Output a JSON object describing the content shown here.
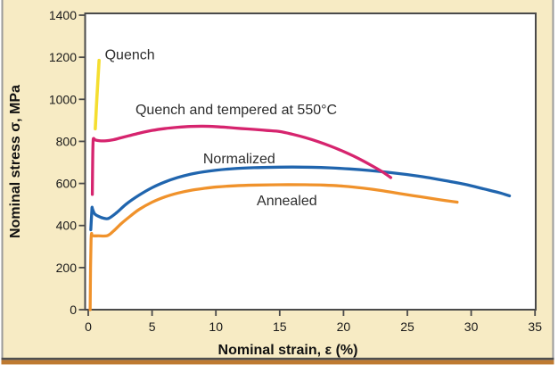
{
  "colors": {
    "panel_bg": "#F7EBC4",
    "plot_bg": "#FFFFFF",
    "plot_border": "#4A4A4A",
    "edge_line": "#9A9A9A",
    "edge_dark": "#4F4F4F",
    "edge_accent": "#BE7A31",
    "text": "#1A1A1A"
  },
  "chart_data": {
    "type": "line",
    "title": "",
    "xlabel": "Nominal strain, ε (%)",
    "ylabel": "Nominal stress σ, MPa",
    "xlim": [
      0,
      35
    ],
    "ylim": [
      0,
      1400
    ],
    "xticks": [
      0,
      5,
      10,
      15,
      20,
      25,
      30,
      35
    ],
    "yticks": [
      0,
      200,
      400,
      600,
      800,
      1000,
      1200,
      1400
    ],
    "grid": false,
    "legend": "inline-labels",
    "series": [
      {
        "name": "Quench",
        "color": "#F5DE30",
        "stroke_width": 3.6,
        "points": [
          [
            0.55,
            860
          ],
          [
            0.68,
            1010
          ],
          [
            0.85,
            1185
          ]
        ]
      },
      {
        "name": "Quench and tempered at 550°C",
        "color": "#D6246E",
        "stroke_width": 3.3,
        "points": [
          [
            0.32,
            548
          ],
          [
            0.35,
            720
          ],
          [
            0.38,
            800
          ],
          [
            0.42,
            814
          ],
          [
            0.55,
            807
          ],
          [
            0.9,
            803
          ],
          [
            1.4,
            803
          ],
          [
            1.9,
            807
          ],
          [
            2.5,
            816
          ],
          [
            3.2,
            827
          ],
          [
            4,
            839
          ],
          [
            5,
            852
          ],
          [
            6,
            861
          ],
          [
            7,
            867
          ],
          [
            8,
            871
          ],
          [
            9,
            872
          ],
          [
            10,
            870
          ],
          [
            11,
            866
          ],
          [
            12,
            861
          ],
          [
            13,
            857
          ],
          [
            14,
            852
          ],
          [
            15,
            847
          ],
          [
            16,
            834
          ],
          [
            17,
            818
          ],
          [
            18,
            799
          ],
          [
            19,
            777
          ],
          [
            20,
            752
          ],
          [
            21,
            724
          ],
          [
            22,
            692
          ],
          [
            23,
            657
          ],
          [
            23.7,
            628
          ]
        ]
      },
      {
        "name": "Normalized",
        "color": "#2065AE",
        "stroke_width": 3.3,
        "points": [
          [
            0.2,
            380
          ],
          [
            0.28,
            470
          ],
          [
            0.3,
            487
          ],
          [
            0.34,
            478
          ],
          [
            0.5,
            456
          ],
          [
            0.8,
            444
          ],
          [
            1.2,
            435
          ],
          [
            1.6,
            434
          ],
          [
            2.2,
            460
          ],
          [
            3,
            503
          ],
          [
            4,
            545
          ],
          [
            5,
            580
          ],
          [
            6,
            607
          ],
          [
            7,
            628
          ],
          [
            8,
            644
          ],
          [
            9,
            655
          ],
          [
            10,
            663
          ],
          [
            11.5,
            671
          ],
          [
            13,
            675
          ],
          [
            14.5,
            677
          ],
          [
            16,
            678
          ],
          [
            17.5,
            677
          ],
          [
            19,
            674
          ],
          [
            20.5,
            669
          ],
          [
            22,
            662
          ],
          [
            23.5,
            653
          ],
          [
            25,
            642
          ],
          [
            26.5,
            629
          ],
          [
            28,
            613
          ],
          [
            29.5,
            596
          ],
          [
            31,
            574
          ],
          [
            32.2,
            556
          ],
          [
            33,
            541
          ]
        ]
      },
      {
        "name": "Annealed",
        "color": "#F0922B",
        "stroke_width": 3.3,
        "points": [
          [
            0.15,
            0
          ],
          [
            0.18,
            200
          ],
          [
            0.22,
            330
          ],
          [
            0.26,
            362
          ],
          [
            0.33,
            352
          ],
          [
            0.8,
            351
          ],
          [
            1.5,
            352
          ],
          [
            2,
            375
          ],
          [
            2.6,
            410
          ],
          [
            3.3,
            445
          ],
          [
            4,
            477
          ],
          [
            5,
            511
          ],
          [
            6,
            536
          ],
          [
            7,
            554
          ],
          [
            8,
            567
          ],
          [
            9,
            576
          ],
          [
            10,
            583
          ],
          [
            11.5,
            589
          ],
          [
            13,
            592
          ],
          [
            15,
            594
          ],
          [
            17,
            594
          ],
          [
            18.5,
            592
          ],
          [
            20,
            587
          ],
          [
            21.5,
            578
          ],
          [
            23,
            566
          ],
          [
            24.5,
            551
          ],
          [
            26,
            537
          ],
          [
            27.5,
            523
          ],
          [
            28.9,
            511
          ]
        ]
      }
    ],
    "annotations": [
      {
        "text": "Quench",
        "x": 1.3,
        "y": 1190,
        "anchor": "start",
        "name": "label-quench"
      },
      {
        "text": "Quench and tempered at 550°C",
        "x": 3.7,
        "y": 930,
        "anchor": "start",
        "name": "label-quench-tempered"
      },
      {
        "text": "Normalized",
        "x": 9.0,
        "y": 696,
        "anchor": "start",
        "name": "label-normalized"
      },
      {
        "text": "Annealed",
        "x": 13.2,
        "y": 497,
        "anchor": "start",
        "name": "label-annealed"
      }
    ]
  }
}
